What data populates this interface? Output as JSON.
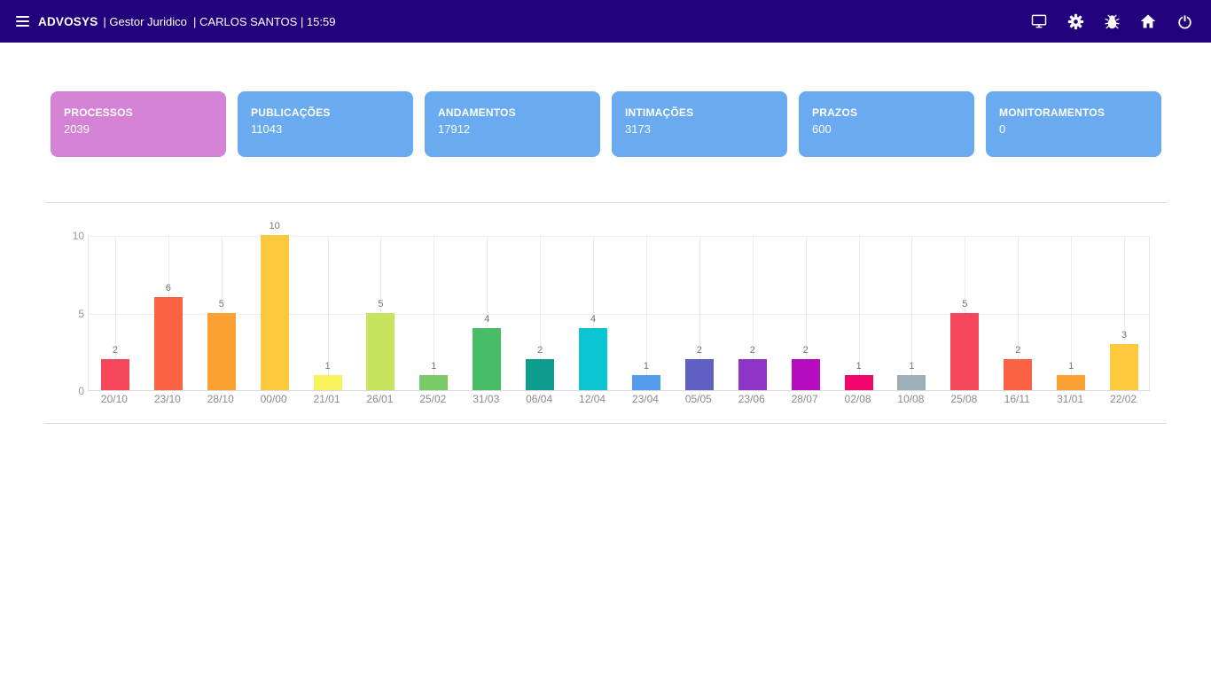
{
  "navbar": {
    "brand": "ADVOSYS",
    "context": "| Gestor Juridico  | CARLOS SANTOS | 15:59",
    "bg_color": "#22017d",
    "icons": [
      "menu-icon",
      "monitor-icon",
      "gear-icon",
      "bug-icon",
      "home-icon",
      "power-icon"
    ]
  },
  "cards": [
    {
      "label": "PROCESSOS",
      "value": "2039",
      "color": "#d582d6"
    },
    {
      "label": "PUBLICAÇÕES",
      "value": "11043",
      "color": "#69aaf0"
    },
    {
      "label": "ANDAMENTOS",
      "value": "17912",
      "color": "#69aaf0"
    },
    {
      "label": "INTIMAÇÕES",
      "value": "3173",
      "color": "#69aaf0"
    },
    {
      "label": "PRAZOS",
      "value": "600",
      "color": "#69aaf0"
    },
    {
      "label": "MONITORAMENTOS",
      "value": "0",
      "color": "#69aaf0"
    }
  ],
  "chart_data": {
    "type": "bar",
    "title": "",
    "xlabel": "",
    "ylabel": "",
    "categories": [
      "20/10",
      "23/10",
      "28/10",
      "00/00",
      "21/01",
      "26/01",
      "25/02",
      "31/03",
      "06/04",
      "12/04",
      "23/04",
      "05/05",
      "23/06",
      "28/07",
      "02/08",
      "10/08",
      "25/08",
      "16/11",
      "31/01",
      "22/02"
    ],
    "values": [
      2,
      6,
      5,
      10,
      1,
      5,
      1,
      4,
      2,
      4,
      1,
      2,
      2,
      2,
      1,
      1,
      5,
      2,
      1,
      3
    ],
    "bar_colors": [
      "#f5465c",
      "#fa6244",
      "#fba233",
      "#fcc93d",
      "#f8f35e",
      "#c8e45f",
      "#7cc968",
      "#49bc66",
      "#0e9d8d",
      "#0bc4d4",
      "#529ceb",
      "#6060c4",
      "#8e33c6",
      "#b50cc0",
      "#f2066e",
      "#9fafb9",
      "#f5465c",
      "#fa6244",
      "#fba233",
      "#fcc93d"
    ],
    "ylim": [
      0,
      10
    ],
    "yticks": [
      0,
      5,
      10
    ],
    "grid": true,
    "legend": false,
    "value_labels": true
  }
}
